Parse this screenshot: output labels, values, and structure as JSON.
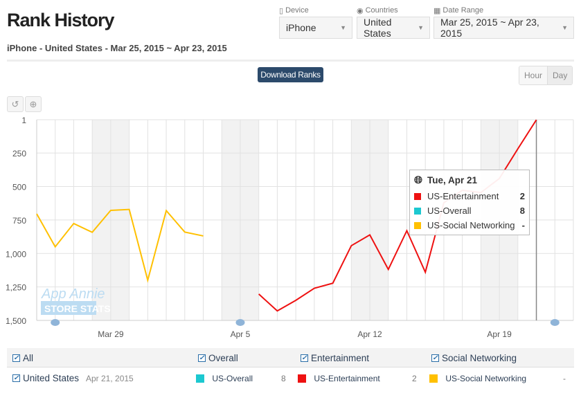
{
  "header": {
    "title": "Rank History",
    "subtitle": "iPhone - United States - Mar 25, 2015 ~ Apr 23, 2015"
  },
  "filters": {
    "device": {
      "label": "Device",
      "value": "iPhone"
    },
    "countries": {
      "label": "Countries",
      "value": "United States"
    },
    "date_range": {
      "label": "Date Range",
      "value": "Mar 25, 2015 ~ Apr 23, 2015"
    }
  },
  "toolbar": {
    "download": "Download Ranks",
    "hour": "Hour",
    "day": "Day",
    "reset_icon": "↺",
    "zoom_icon": "⊕"
  },
  "watermark": {
    "line1": "App Annie",
    "line2": "STORE STATS"
  },
  "tooltip": {
    "title": "Tue, Apr 21",
    "rows": [
      {
        "name": "US-Entertainment",
        "value": "2",
        "color": "#ee1111"
      },
      {
        "name": "US-Overall",
        "value": "8",
        "color": "#1cc8d0"
      },
      {
        "name": "US-Social Networking",
        "value": "-",
        "color": "#ffc000"
      }
    ]
  },
  "legend": {
    "all": "All",
    "overall": "Overall",
    "entertainment": "Entertainment",
    "social": "Social Networking"
  },
  "row": {
    "country": "United States",
    "date": "Apr 21, 2015",
    "overall": {
      "name": "US-Overall",
      "value": "8"
    },
    "entertainment": {
      "name": "US-Entertainment",
      "value": "2"
    },
    "social": {
      "name": "US-Social Networking",
      "value": "-"
    }
  },
  "chart_data": {
    "type": "line",
    "x": [
      "Mar 25",
      "Mar 26",
      "Mar 27",
      "Mar 28",
      "Mar 29",
      "Mar 30",
      "Mar 31",
      "Apr 1",
      "Apr 2",
      "Apr 3",
      "Apr 4",
      "Apr 5",
      "Apr 6",
      "Apr 7",
      "Apr 8",
      "Apr 9",
      "Apr 10",
      "Apr 11",
      "Apr 12",
      "Apr 13",
      "Apr 14",
      "Apr 15",
      "Apr 16",
      "Apr 17",
      "Apr 18",
      "Apr 19",
      "Apr 20",
      "Apr 21",
      "Apr 22",
      "Apr 23"
    ],
    "x_tick_labels": [
      "Mar 29",
      "Apr 5",
      "Apr 12",
      "Apr 19"
    ],
    "y_tick_labels": [
      "1",
      "250",
      "500",
      "750",
      "1,000",
      "1,250",
      "1,500"
    ],
    "y_ticks": [
      1,
      250,
      500,
      750,
      1000,
      1250,
      1500
    ],
    "ylim": [
      1,
      1500
    ],
    "y_inverted": true,
    "weekends": [
      [
        "Mar 28",
        "Mar 29"
      ],
      [
        "Apr 4",
        "Apr 5"
      ],
      [
        "Apr 11",
        "Apr 12"
      ],
      [
        "Apr 18",
        "Apr 19"
      ]
    ],
    "highlight_x": "Apr 21",
    "note_markers": [
      "Mar 26",
      "Apr 5",
      "Apr 22"
    ],
    "series": [
      {
        "name": "US-Social Networking",
        "color": "#ffc000",
        "values": [
          704,
          950,
          776,
          842,
          678,
          671,
          1200,
          680,
          840,
          869,
          null,
          null,
          null,
          null,
          null,
          null,
          null,
          null,
          null,
          null,
          null,
          null,
          null,
          null,
          null,
          null,
          null,
          null,
          null,
          null
        ]
      },
      {
        "name": "US-Entertainment",
        "color": "#ee1111",
        "values": [
          null,
          null,
          null,
          null,
          null,
          null,
          null,
          null,
          null,
          null,
          null,
          null,
          1303,
          1429,
          1350,
          1260,
          1222,
          942,
          861,
          1119,
          830,
          1140,
          621,
          528,
          545,
          440,
          218,
          2,
          null,
          null
        ]
      },
      {
        "name": "US-Overall",
        "color": "#1cc8d0",
        "values": [
          null,
          null,
          null,
          null,
          null,
          null,
          null,
          null,
          null,
          null,
          null,
          null,
          null,
          null,
          null,
          null,
          null,
          null,
          null,
          null,
          null,
          null,
          null,
          null,
          null,
          null,
          null,
          8,
          null,
          null
        ]
      }
    ]
  }
}
